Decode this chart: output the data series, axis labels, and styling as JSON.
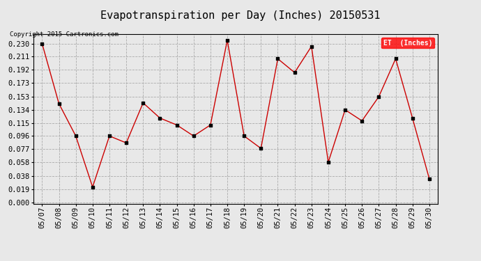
{
  "title": "Evapotranspiration per Day (Inches) 20150531",
  "copyright": "Copyright 2015 Cartronics.com",
  "legend_label": "ET  (Inches)",
  "dates": [
    "05/07",
    "05/08",
    "05/09",
    "05/10",
    "05/11",
    "05/12",
    "05/13",
    "05/14",
    "05/15",
    "05/16",
    "05/17",
    "05/18",
    "05/19",
    "05/20",
    "05/21",
    "05/22",
    "05/23",
    "05/24",
    "05/25",
    "05/26",
    "05/27",
    "05/28",
    "05/29",
    "05/30"
  ],
  "values": [
    0.23,
    0.143,
    0.096,
    0.022,
    0.096,
    0.086,
    0.144,
    0.122,
    0.112,
    0.096,
    0.112,
    0.235,
    0.096,
    0.078,
    0.208,
    0.188,
    0.226,
    0.058,
    0.134,
    0.118,
    0.153,
    0.208,
    0.122,
    0.034
  ],
  "ylim": [
    -0.002,
    0.244
  ],
  "yticks": [
    0.0,
    0.019,
    0.038,
    0.058,
    0.077,
    0.096,
    0.115,
    0.134,
    0.153,
    0.173,
    0.192,
    0.211,
    0.23
  ],
  "line_color": "#cc0000",
  "marker_color": "black",
  "bg_color": "#e8e8e8",
  "grid_color": "#aaaaaa",
  "legend_bg": "red",
  "legend_text_color": "white",
  "title_fontsize": 11,
  "copyright_fontsize": 6.5,
  "tick_fontsize": 7.5,
  "axis_font": "monospace"
}
